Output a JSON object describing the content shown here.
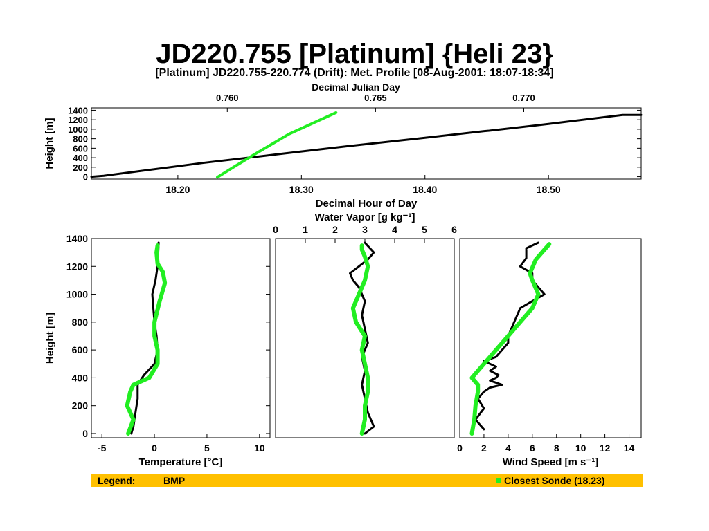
{
  "title": "JD220.755 [Platinum] {Heli 23}",
  "colors": {
    "bmp": "#000000",
    "sonde": "#22ee22",
    "legend_bg": "#ffc000"
  },
  "legend": {
    "label": "Legend:",
    "bmp": "BMP",
    "sonde": "Closest Sonde (18.23)"
  },
  "chart_data": [
    {
      "type": "line",
      "title": "[Platinum] JD220.755-220.774 (Drift): Met. Profile [08-Aug-2001: 18:07-18:34]",
      "xlabel": "Decimal Hour of Day",
      "x2label": "Decimal Julian Day",
      "ylabel": "Height [m]",
      "xlim": [
        18.13,
        18.575
      ],
      "ylim": [
        -50,
        1450
      ],
      "x_ticks": [
        "18.20",
        "18.30",
        "18.40",
        "18.50"
      ],
      "x2_ticks": [
        "0.760",
        "0.765",
        "0.770"
      ],
      "y_ticks": [
        "0",
        "200",
        "400",
        "600",
        "800",
        "1000",
        "1200",
        "1400"
      ],
      "series": [
        {
          "name": "BMP",
          "x": [
            18.13,
            18.14,
            18.17,
            18.22,
            18.28,
            18.34,
            18.4,
            18.448,
            18.452,
            18.5,
            18.56,
            18.575
          ],
          "y": [
            0,
            20,
            120,
            290,
            470,
            650,
            820,
            960,
            970,
            1110,
            1300,
            1300
          ]
        },
        {
          "name": "Closest Sonde (18.23)",
          "x": [
            18.232,
            18.245,
            18.262,
            18.29,
            18.328
          ],
          "y": [
            -10,
            200,
            470,
            900,
            1350
          ]
        }
      ]
    },
    {
      "type": "line",
      "xlabel": "Temperature [°C]",
      "ylabel": "Height [m]",
      "xlim": [
        -6,
        11
      ],
      "ylim": [
        -30,
        1400
      ],
      "x_ticks": [
        "-5",
        "0",
        "5",
        "10"
      ],
      "y_ticks": [
        "0",
        "200",
        "400",
        "600",
        "800",
        "1000",
        "1200",
        "1400"
      ],
      "series": [
        {
          "name": "BMP",
          "x": [
            -2.2,
            -2.0,
            -1.8,
            -1.6,
            -1.6,
            -1.0,
            0.0,
            0.3,
            0.2,
            0.0,
            -0.1,
            -0.2,
            0.1,
            0.3,
            0.4
          ],
          "y": [
            0,
            50,
            150,
            250,
            350,
            420,
            500,
            600,
            700,
            800,
            900,
            1000,
            1100,
            1200,
            1370
          ]
        },
        {
          "name": "Closest Sonde (18.23)",
          "x": [
            -2.5,
            -2.0,
            -2.6,
            -2.3,
            -2.0,
            -0.5,
            0.3,
            0.3,
            0.0,
            0.0,
            0.5,
            1.0,
            0.8,
            0.3,
            0.2,
            0.3
          ],
          "y": [
            0,
            100,
            200,
            300,
            350,
            400,
            500,
            600,
            700,
            800,
            950,
            1080,
            1160,
            1220,
            1300,
            1350
          ]
        }
      ]
    },
    {
      "type": "line",
      "x2label": "Water Vapor [g kg⁻¹]",
      "xlim": [
        0,
        6
      ],
      "ylim": [
        -30,
        1400
      ],
      "x2_ticks": [
        "0",
        "1",
        "2",
        "3",
        "4",
        "5",
        "6"
      ],
      "series": [
        {
          "name": "BMP",
          "x": [
            3.0,
            3.3,
            3.1,
            3.0,
            2.9,
            3.0,
            2.9,
            3.1,
            3.0,
            2.9,
            3.0,
            2.8,
            2.6,
            2.5,
            2.8,
            3.1,
            3.3,
            3.0
          ],
          "y": [
            0,
            50,
            150,
            250,
            350,
            450,
            550,
            650,
            750,
            850,
            950,
            1050,
            1100,
            1150,
            1200,
            1250,
            1300,
            1370
          ]
        },
        {
          "name": "Closest Sonde (18.23)",
          "x": [
            2.9,
            3.0,
            3.0,
            3.1,
            3.1,
            3.0,
            2.9,
            3.0,
            2.7,
            2.6,
            2.8,
            3.0,
            3.1,
            3.0,
            2.9,
            2.9
          ],
          "y": [
            0,
            100,
            200,
            300,
            400,
            500,
            600,
            700,
            800,
            900,
            1000,
            1100,
            1200,
            1270,
            1320,
            1350
          ]
        }
      ]
    },
    {
      "type": "line",
      "xlabel": "Wind Speed [m s⁻¹]",
      "xlim": [
        0,
        15
      ],
      "ylim": [
        -30,
        1400
      ],
      "x_ticks": [
        "0",
        "2",
        "4",
        "6",
        "8",
        "10",
        "12",
        "14"
      ],
      "series": [
        {
          "name": "BMP",
          "x": [
            2.0,
            1.3,
            2.0,
            1.5,
            2.0,
            2.5,
            3.5,
            2.5,
            3.0,
            3.2,
            2.5,
            3.0,
            2.0,
            3.0,
            3.5,
            4.0,
            4.0,
            4.5,
            5.0,
            6.0,
            7.0,
            6.5,
            6.0,
            6.0,
            5.0,
            5.5,
            5.5,
            6.5
          ],
          "y": [
            30,
            100,
            180,
            250,
            300,
            330,
            350,
            380,
            400,
            420,
            450,
            480,
            520,
            550,
            600,
            650,
            700,
            800,
            900,
            950,
            1000,
            1050,
            1100,
            1150,
            1200,
            1260,
            1330,
            1370
          ]
        },
        {
          "name": "Closest Sonde (18.23)",
          "x": [
            1.0,
            1.2,
            1.3,
            1.5,
            1.5,
            1.0,
            1.5,
            2.0,
            3.0,
            4.0,
            5.0,
            6.0,
            6.5,
            6.0,
            5.8,
            6.3,
            7.0,
            7.4
          ],
          "y": [
            0,
            100,
            200,
            300,
            350,
            400,
            450,
            500,
            600,
            700,
            800,
            900,
            1000,
            1100,
            1150,
            1250,
            1320,
            1360
          ]
        }
      ]
    }
  ]
}
